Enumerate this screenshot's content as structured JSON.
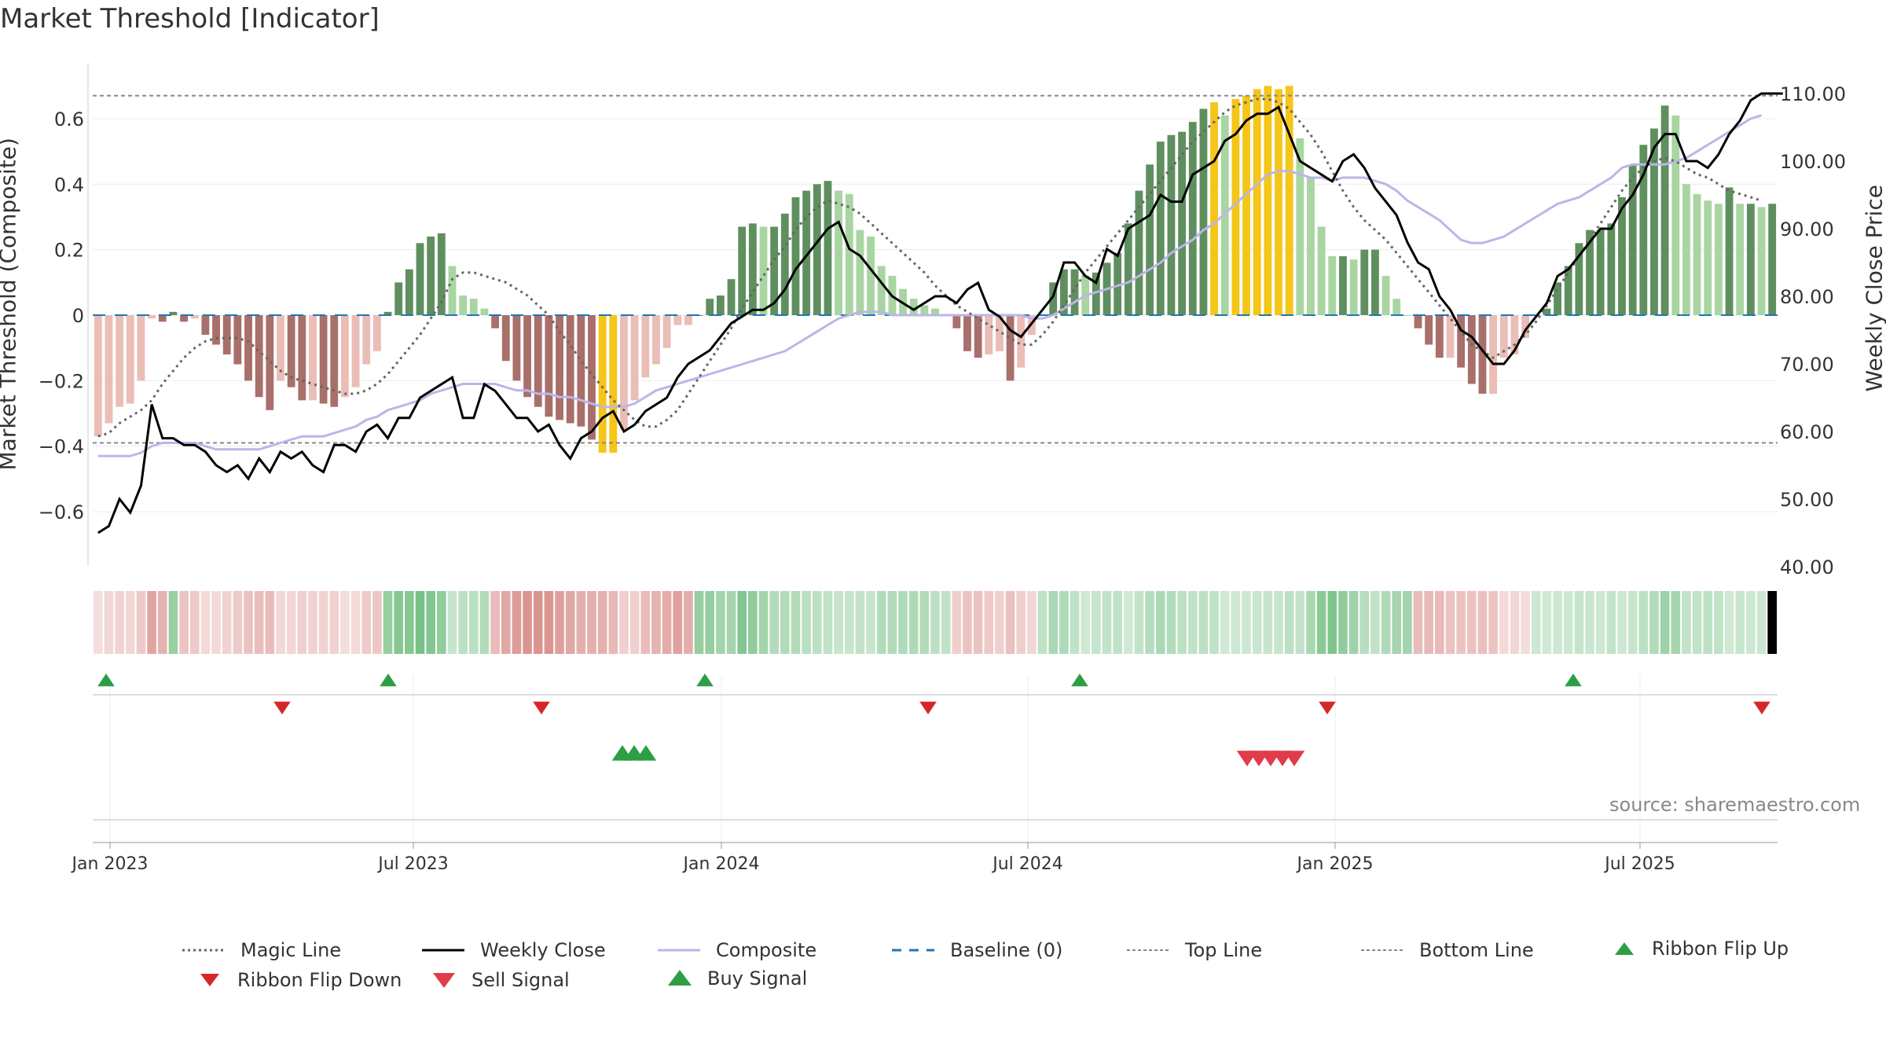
{
  "title": "Market Threshold [Indicator]",
  "source": "source: sharemaestro.com",
  "chart_data": {
    "type": "bar",
    "left_axis": {
      "label": "Market Threshold (Composite)",
      "ticks": [
        0.6,
        0.4,
        0.2,
        0,
        -0.2,
        -0.4,
        -0.6
      ],
      "tick_labels": [
        "0.6",
        "0.4",
        "0.2",
        "0",
        "−0.2",
        "−0.4",
        "−0.6"
      ],
      "ylim": [
        -0.76,
        0.76
      ]
    },
    "right_axis": {
      "label": "Weekly Close Price",
      "ticks": [
        110,
        100,
        90,
        80,
        70,
        60,
        50,
        40
      ],
      "tick_labels": [
        "110.00",
        "100.00",
        "90.00",
        "80.00",
        "70.00",
        "60.00",
        "50.00",
        "40.00"
      ],
      "ylim": [
        38,
        118
      ]
    },
    "x_ticks": [
      "Jan 2023",
      "Jul 2023",
      "Jan 2024",
      "Jul 2024",
      "Jan 2025",
      "Jul 2025"
    ],
    "top_line": 0.67,
    "bottom_line": -0.39,
    "composite_bars": [
      -0.37,
      -0.33,
      -0.28,
      -0.27,
      -0.2,
      -0.01,
      -0.02,
      0.01,
      -0.02,
      -0.01,
      -0.06,
      -0.09,
      -0.12,
      -0.15,
      -0.2,
      -0.25,
      -0.29,
      -0.2,
      -0.22,
      -0.26,
      -0.26,
      -0.27,
      -0.28,
      -0.25,
      -0.22,
      -0.15,
      -0.11,
      0.01,
      0.1,
      0.14,
      0.22,
      0.24,
      0.25,
      0.15,
      0.06,
      0.05,
      0.02,
      -0.04,
      -0.14,
      -0.2,
      -0.25,
      -0.28,
      -0.31,
      -0.32,
      -0.33,
      -0.34,
      -0.38,
      -0.42,
      -0.42,
      -0.35,
      -0.26,
      -0.19,
      -0.15,
      -0.1,
      -0.03,
      -0.03,
      0.0,
      0.05,
      0.06,
      0.11,
      0.27,
      0.28,
      0.27,
      0.27,
      0.31,
      0.36,
      0.38,
      0.4,
      0.41,
      0.38,
      0.37,
      0.26,
      0.24,
      0.15,
      0.12,
      0.08,
      0.05,
      0.03,
      0.02,
      0.0,
      -0.04,
      -0.11,
      -0.13,
      -0.12,
      -0.11,
      -0.2,
      -0.16,
      -0.06,
      0.0,
      0.1,
      0.14,
      0.14,
      0.12,
      0.13,
      0.16,
      0.19,
      0.28,
      0.38,
      0.46,
      0.53,
      0.55,
      0.56,
      0.59,
      0.63,
      0.65,
      0.61,
      0.66,
      0.67,
      0.69,
      0.7,
      0.69,
      0.7,
      0.54,
      0.42,
      0.27,
      0.18,
      0.18,
      0.17,
      0.2,
      0.2,
      0.12,
      0.05,
      0.0,
      -0.04,
      -0.09,
      -0.13,
      -0.13,
      -0.16,
      -0.21,
      -0.24,
      -0.24,
      -0.13,
      -0.12,
      -0.07,
      0.0,
      0.02,
      0.1,
      0.15,
      0.22,
      0.26,
      0.26,
      0.28,
      0.36,
      0.46,
      0.52,
      0.57,
      0.64,
      0.61,
      0.4,
      0.37,
      0.35,
      0.34,
      0.39,
      0.34,
      0.34,
      0.33,
      0.34
    ],
    "magic_line": [
      -0.37,
      -0.36,
      -0.33,
      -0.31,
      -0.29,
      -0.26,
      -0.21,
      -0.17,
      -0.13,
      -0.1,
      -0.08,
      -0.07,
      -0.07,
      -0.07,
      -0.08,
      -0.11,
      -0.14,
      -0.17,
      -0.19,
      -0.2,
      -0.21,
      -0.22,
      -0.23,
      -0.24,
      -0.24,
      -0.23,
      -0.21,
      -0.18,
      -0.14,
      -0.1,
      -0.06,
      -0.01,
      0.04,
      0.11,
      0.13,
      0.13,
      0.12,
      0.11,
      0.1,
      0.08,
      0.06,
      0.03,
      0.0,
      -0.05,
      -0.09,
      -0.14,
      -0.18,
      -0.22,
      -0.26,
      -0.29,
      -0.32,
      -0.34,
      -0.34,
      -0.32,
      -0.29,
      -0.24,
      -0.19,
      -0.14,
      -0.09,
      -0.04,
      0.02,
      0.07,
      0.12,
      0.17,
      0.21,
      0.26,
      0.3,
      0.33,
      0.35,
      0.34,
      0.33,
      0.31,
      0.28,
      0.25,
      0.22,
      0.19,
      0.16,
      0.13,
      0.09,
      0.06,
      0.03,
      0.01,
      -0.01,
      -0.03,
      -0.05,
      -0.07,
      -0.09,
      -0.09,
      -0.06,
      -0.02,
      0.03,
      0.08,
      0.13,
      0.17,
      0.21,
      0.25,
      0.29,
      0.33,
      0.37,
      0.41,
      0.45,
      0.49,
      0.53,
      0.56,
      0.59,
      0.62,
      0.64,
      0.65,
      0.66,
      0.66,
      0.65,
      0.63,
      0.59,
      0.55,
      0.5,
      0.44,
      0.38,
      0.33,
      0.29,
      0.26,
      0.23,
      0.19,
      0.15,
      0.11,
      0.07,
      0.03,
      -0.01,
      -0.05,
      -0.09,
      -0.11,
      -0.13,
      -0.11,
      -0.09,
      -0.06,
      -0.02,
      0.03,
      0.08,
      0.13,
      0.18,
      0.23,
      0.28,
      0.33,
      0.38,
      0.42,
      0.45,
      0.47,
      0.48,
      0.47,
      0.45,
      0.43,
      0.42,
      0.4,
      0.38,
      0.37,
      0.36,
      0.35
    ],
    "composite_line": [
      -0.43,
      -0.43,
      -0.43,
      -0.43,
      -0.42,
      -0.4,
      -0.39,
      -0.39,
      -0.39,
      -0.39,
      -0.4,
      -0.41,
      -0.41,
      -0.41,
      -0.41,
      -0.41,
      -0.4,
      -0.39,
      -0.38,
      -0.37,
      -0.37,
      -0.37,
      -0.36,
      -0.35,
      -0.34,
      -0.32,
      -0.31,
      -0.29,
      -0.28,
      -0.27,
      -0.26,
      -0.24,
      -0.23,
      -0.22,
      -0.21,
      -0.21,
      -0.21,
      -0.21,
      -0.22,
      -0.23,
      -0.23,
      -0.24,
      -0.24,
      -0.25,
      -0.25,
      -0.26,
      -0.27,
      -0.28,
      -0.28,
      -0.28,
      -0.27,
      -0.25,
      -0.23,
      -0.22,
      -0.21,
      -0.2,
      -0.19,
      -0.18,
      -0.17,
      -0.16,
      -0.15,
      -0.14,
      -0.13,
      -0.12,
      -0.11,
      -0.09,
      -0.07,
      -0.05,
      -0.03,
      -0.01,
      0.0,
      0.01,
      0.01,
      0.01,
      0.0,
      0.0,
      0.0,
      0.0,
      0.0,
      0.0,
      0.0,
      0.0,
      0.0,
      0.0,
      0.0,
      0.0,
      0.0,
      -0.01,
      -0.01,
      0.0,
      0.02,
      0.04,
      0.06,
      0.07,
      0.08,
      0.09,
      0.1,
      0.12,
      0.14,
      0.16,
      0.19,
      0.21,
      0.23,
      0.26,
      0.28,
      0.31,
      0.34,
      0.37,
      0.4,
      0.43,
      0.44,
      0.44,
      0.43,
      0.42,
      0.42,
      0.41,
      0.42,
      0.42,
      0.42,
      0.41,
      0.4,
      0.38,
      0.35,
      0.33,
      0.31,
      0.29,
      0.26,
      0.23,
      0.22,
      0.22,
      0.23,
      0.24,
      0.26,
      0.28,
      0.3,
      0.32,
      0.34,
      0.35,
      0.36,
      0.38,
      0.4,
      0.42,
      0.45,
      0.46,
      0.46,
      0.46,
      0.46,
      0.47,
      0.48,
      0.5,
      0.52,
      0.54,
      0.56,
      0.58,
      0.6,
      0.61
    ],
    "weekly_close": [
      45,
      46,
      50,
      48,
      52,
      64,
      59,
      59,
      58,
      58,
      57,
      55,
      54,
      55,
      53,
      56,
      54,
      57,
      56,
      57,
      55,
      54,
      58,
      58,
      57,
      60,
      61,
      59,
      62,
      62,
      65,
      66,
      67,
      68,
      62,
      62,
      67,
      66,
      64,
      62,
      62,
      60,
      61,
      58,
      56,
      59,
      60,
      62,
      63,
      60,
      61,
      63,
      64,
      65,
      68,
      70,
      71,
      72,
      74,
      76,
      77,
      78,
      78,
      79,
      81,
      84,
      86,
      88,
      90,
      91,
      87,
      86,
      84,
      82,
      80,
      79,
      78,
      79,
      80,
      80,
      79,
      81,
      82,
      78,
      77,
      75,
      74,
      76,
      78,
      80,
      85,
      85,
      83,
      82,
      87,
      86,
      90,
      91,
      92,
      95,
      94,
      94,
      98,
      99,
      100,
      103,
      104,
      106,
      107,
      107,
      108,
      104,
      100,
      99,
      98,
      97,
      100,
      101,
      99,
      96,
      94,
      92,
      88,
      85,
      84,
      80,
      78,
      75,
      74,
      72,
      70,
      70,
      72,
      75,
      77,
      79,
      83,
      84,
      86,
      88,
      90,
      90,
      93,
      95,
      98,
      102,
      104,
      104,
      100,
      100,
      99,
      101,
      104,
      106,
      109,
      110,
      110,
      110
    ],
    "ribbon_flip_up": [
      "Jan 2023",
      "Jun 2023",
      "Dec 2023",
      "Jul 2024",
      "Jun 2025"
    ],
    "ribbon_flip_down": [
      "Apr 2023",
      "Sep 2023",
      "May 2024",
      "Dec 2024",
      "Oct 2025"
    ],
    "buy_signals": [
      "Nov 2023",
      "Nov 2023",
      "Nov 2023"
    ],
    "sell_signals": [
      "Nov 2024",
      "Nov 2024",
      "Nov 2024",
      "Nov 2024",
      "Nov 2024"
    ]
  },
  "legend": [
    {
      "label": "Magic Line",
      "icon": "dotted-line-icon",
      "color": "#666666"
    },
    {
      "label": "Weekly Close",
      "icon": "solid-line-icon",
      "color": "#000000"
    },
    {
      "label": "Composite",
      "icon": "solid-line-icon",
      "color": "#bdb5e8"
    },
    {
      "label": "Baseline (0)",
      "icon": "dashed-line-icon",
      "color": "#1f77b4"
    },
    {
      "label": "Top Line",
      "icon": "dotted-line-icon",
      "color": "#888888"
    },
    {
      "label": "Bottom Line",
      "icon": "dotted-line-icon",
      "color": "#888888"
    },
    {
      "label": "Ribbon Flip Up",
      "icon": "triangle-up-icon",
      "color": "#2e9e44"
    },
    {
      "label": "Ribbon Flip Down",
      "icon": "triangle-down-icon",
      "color": "#d62728"
    },
    {
      "label": "Sell Signal",
      "icon": "triangle-down-icon",
      "color": "#e03c4a"
    },
    {
      "label": "Buy Signal",
      "icon": "triangle-up-icon",
      "color": "#2e9e44"
    }
  ]
}
